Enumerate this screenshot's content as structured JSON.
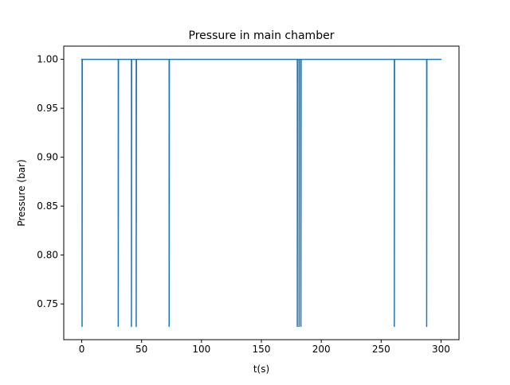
{
  "chart_data": {
    "type": "line",
    "title": "Pressure in main chamber",
    "xlabel": "t(s)",
    "ylabel": "Pressure (bar)",
    "xlim": [
      -15,
      315
    ],
    "ylim": [
      0.7135,
      1.0135
    ],
    "xticks": [
      0,
      50,
      100,
      150,
      200,
      250,
      300
    ],
    "yticks": [
      0.75,
      0.8,
      0.85,
      0.9,
      0.95,
      1.0
    ],
    "xtick_labels": [
      "0",
      "50",
      "100",
      "150",
      "200",
      "250",
      "300"
    ],
    "ytick_labels": [
      "0.75",
      "0.80",
      "0.85",
      "0.90",
      "0.95",
      "1.00"
    ],
    "grid": false,
    "series": [
      {
        "name": "pressure",
        "color": "#1f77b4",
        "baseline": 1.0,
        "dip_value": 0.727,
        "t_start": 0,
        "t_end": 300,
        "dip_times": [
          0.3,
          30.5,
          41.5,
          45.5,
          73.0,
          180.0,
          181.5,
          183.0,
          261.0,
          288.0
        ]
      }
    ]
  }
}
